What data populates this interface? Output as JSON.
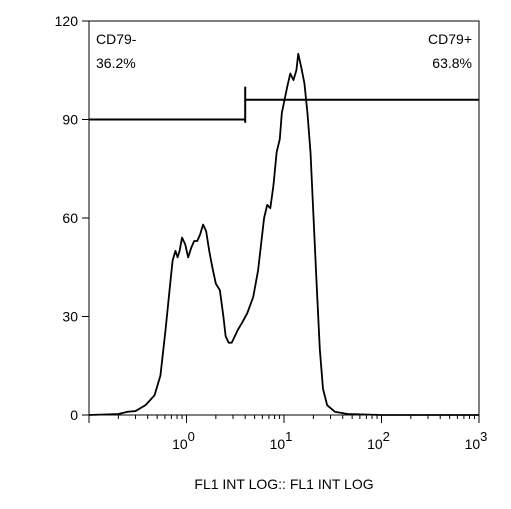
{
  "chart_data": {
    "type": "line",
    "title": "",
    "xlabel": "FL1 INT LOG:: FL1 INT LOG",
    "ylabel": "",
    "x_scale": "log",
    "xlim": [
      0.1,
      1000
    ],
    "ylim": [
      0,
      120
    ],
    "x_ticks": [
      {
        "value": 1,
        "base": "10",
        "exp": "0"
      },
      {
        "value": 10,
        "base": "10",
        "exp": "1"
      },
      {
        "value": 100,
        "base": "10",
        "exp": "2"
      },
      {
        "value": 1000,
        "base": "10",
        "exp": "3"
      }
    ],
    "y_ticks": [
      {
        "value": 0,
        "label": "0"
      },
      {
        "value": 30,
        "label": "30"
      },
      {
        "value": 60,
        "label": "60"
      },
      {
        "value": 90,
        "label": "90"
      },
      {
        "value": 120,
        "label": "120"
      }
    ],
    "series": [
      {
        "color": "#000000",
        "points": [
          [
            0.1,
            0
          ],
          [
            0.2,
            0.3
          ],
          [
            0.25,
            1
          ],
          [
            0.3,
            1.2
          ],
          [
            0.38,
            3
          ],
          [
            0.47,
            6
          ],
          [
            0.54,
            12
          ],
          [
            0.61,
            26
          ],
          [
            0.67,
            38
          ],
          [
            0.72,
            47
          ],
          [
            0.77,
            50
          ],
          [
            0.81,
            48
          ],
          [
            0.85,
            50
          ],
          [
            0.9,
            54
          ],
          [
            0.97,
            52
          ],
          [
            1.04,
            48
          ],
          [
            1.12,
            51
          ],
          [
            1.2,
            53
          ],
          [
            1.29,
            53
          ],
          [
            1.38,
            55
          ],
          [
            1.48,
            58
          ],
          [
            1.59,
            56
          ],
          [
            1.71,
            50
          ],
          [
            1.84,
            45
          ],
          [
            2.0,
            40
          ],
          [
            2.2,
            38
          ],
          [
            2.39,
            30
          ],
          [
            2.52,
            24
          ],
          [
            2.71,
            22
          ],
          [
            2.91,
            22
          ],
          [
            3.13,
            24
          ],
          [
            3.37,
            26
          ],
          [
            3.7,
            28
          ],
          [
            4.2,
            31
          ],
          [
            4.84,
            36
          ],
          [
            5.42,
            44
          ],
          [
            6.25,
            60
          ],
          [
            6.73,
            64
          ],
          [
            7.24,
            63
          ],
          [
            7.8,
            70
          ],
          [
            8.4,
            80
          ],
          [
            9.05,
            84
          ],
          [
            9.5,
            92
          ],
          [
            10.8,
            100
          ],
          [
            11.6,
            104
          ],
          [
            12.5,
            102
          ],
          [
            13.4,
            105
          ],
          [
            14.0,
            110
          ],
          [
            15.0,
            106
          ],
          [
            16.2,
            101
          ],
          [
            17.4,
            92
          ],
          [
            18.7,
            80
          ],
          [
            20.1,
            60
          ],
          [
            21.6,
            40
          ],
          [
            23.3,
            20
          ],
          [
            25.1,
            8
          ],
          [
            27.7,
            3
          ],
          [
            33.2,
            1
          ],
          [
            45,
            0.3
          ],
          [
            100,
            0
          ],
          [
            1000,
            0
          ]
        ]
      }
    ],
    "gates": [
      {
        "name": "CD79-",
        "percent": "36.2%",
        "x_start": 0.1,
        "x_end": 4.0,
        "y": 90,
        "label_position": "top-left"
      },
      {
        "name": "CD79+",
        "percent": "63.8%",
        "x_start": 4.0,
        "x_end": 1000,
        "y": 96,
        "label_position": "top-right"
      }
    ],
    "gate_divider_x": 4.0,
    "gate_divider_y": [
      89,
      100
    ]
  }
}
